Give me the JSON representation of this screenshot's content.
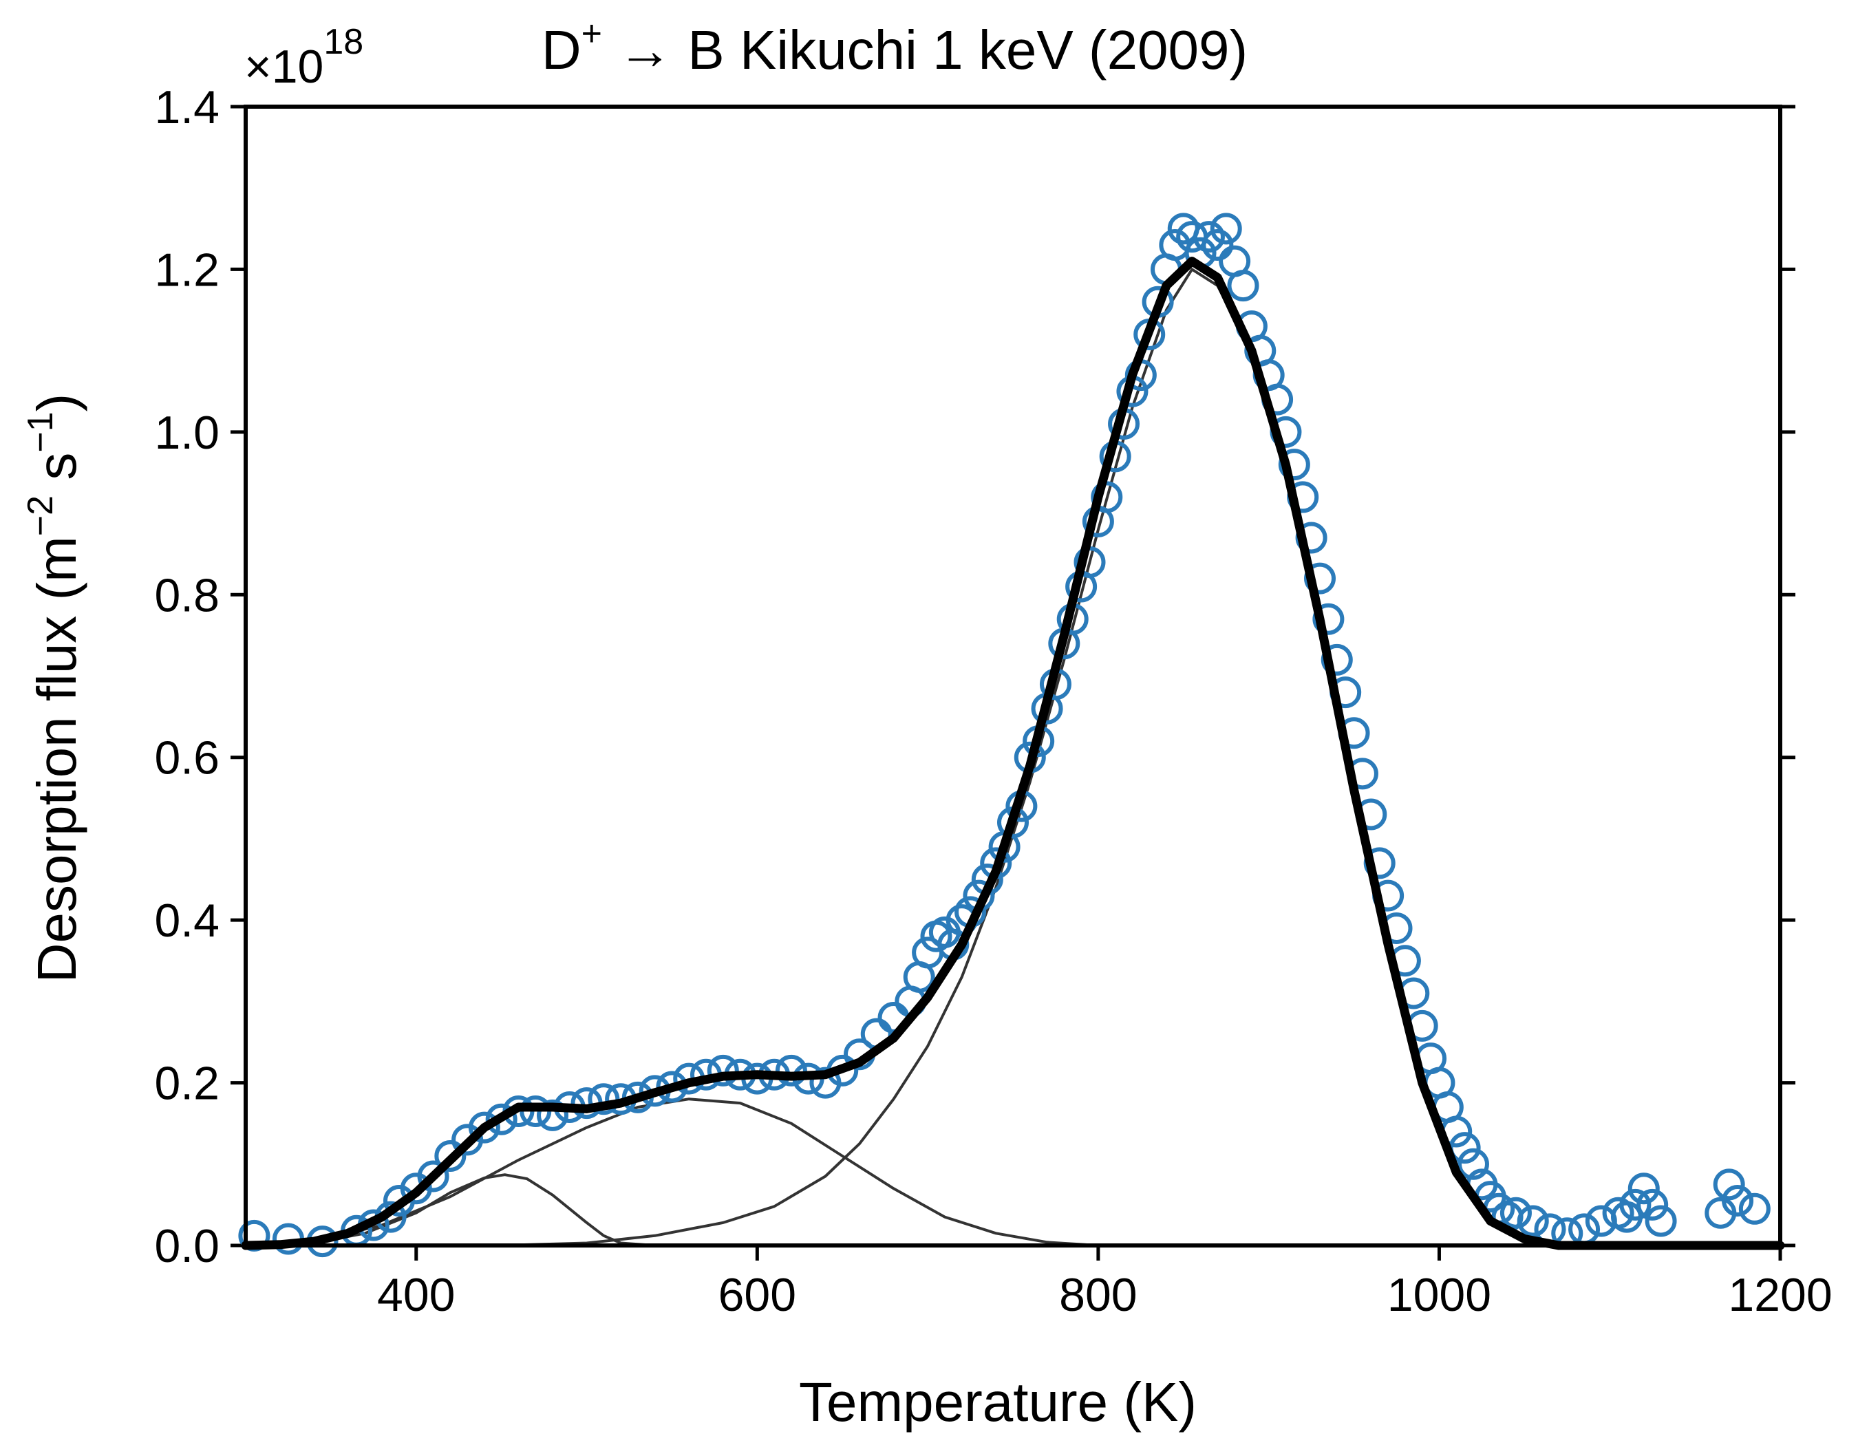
{
  "chart_data": {
    "type": "scatter",
    "title": {
      "prefix": "D",
      "sup": "+",
      "rest": " → B Kikuchi 1 keV (2009)"
    },
    "xlabel": "Temperature (K)",
    "ylabel": {
      "base": "Desorption flux (m",
      "sup1": "−2",
      "mid": " s",
      "sup2": "−1",
      "end": ")"
    },
    "y_multiplier": {
      "base": "×10",
      "exp": "18"
    },
    "xlim": [
      300,
      1200
    ],
    "ylim": [
      0,
      1.4
    ],
    "xticks": [
      400,
      600,
      800,
      1000,
      1200
    ],
    "yticks": [
      0.0,
      0.2,
      0.4,
      0.6,
      0.8,
      1.0,
      1.2,
      1.4
    ],
    "ytick_labels": [
      "0.0",
      "0.2",
      "0.4",
      "0.6",
      "0.8",
      "1.0",
      "1.2",
      "1.4"
    ],
    "grid": false,
    "colors": {
      "measured": "#2b7bba",
      "fit": "#000000",
      "components": "#333333"
    },
    "series": [
      {
        "role": "measured",
        "style": "open-circles",
        "points": [
          [
            305,
            0.012
          ],
          [
            325,
            0.008
          ],
          [
            345,
            0.005
          ],
          [
            365,
            0.018
          ],
          [
            375,
            0.025
          ],
          [
            385,
            0.035
          ],
          [
            390,
            0.055
          ],
          [
            400,
            0.07
          ],
          [
            410,
            0.085
          ],
          [
            420,
            0.11
          ],
          [
            430,
            0.13
          ],
          [
            440,
            0.145
          ],
          [
            450,
            0.155
          ],
          [
            460,
            0.165
          ],
          [
            470,
            0.165
          ],
          [
            480,
            0.16
          ],
          [
            490,
            0.17
          ],
          [
            500,
            0.175
          ],
          [
            510,
            0.18
          ],
          [
            520,
            0.18
          ],
          [
            530,
            0.182
          ],
          [
            540,
            0.19
          ],
          [
            550,
            0.195
          ],
          [
            560,
            0.205
          ],
          [
            570,
            0.21
          ],
          [
            580,
            0.215
          ],
          [
            590,
            0.21
          ],
          [
            600,
            0.205
          ],
          [
            610,
            0.21
          ],
          [
            620,
            0.215
          ],
          [
            630,
            0.205
          ],
          [
            640,
            0.2
          ],
          [
            650,
            0.215
          ],
          [
            660,
            0.235
          ],
          [
            670,
            0.26
          ],
          [
            680,
            0.28
          ],
          [
            690,
            0.3
          ],
          [
            695,
            0.33
          ],
          [
            700,
            0.36
          ],
          [
            705,
            0.38
          ],
          [
            710,
            0.385
          ],
          [
            715,
            0.37
          ],
          [
            720,
            0.4
          ],
          [
            725,
            0.41
          ],
          [
            730,
            0.43
          ],
          [
            735,
            0.45
          ],
          [
            740,
            0.47
          ],
          [
            745,
            0.49
          ],
          [
            750,
            0.52
          ],
          [
            755,
            0.54
          ],
          [
            760,
            0.6
          ],
          [
            765,
            0.62
          ],
          [
            770,
            0.66
          ],
          [
            775,
            0.69
          ],
          [
            780,
            0.74
          ],
          [
            785,
            0.77
          ],
          [
            790,
            0.81
          ],
          [
            795,
            0.84
          ],
          [
            800,
            0.89
          ],
          [
            805,
            0.92
          ],
          [
            810,
            0.97
          ],
          [
            815,
            1.01
          ],
          [
            820,
            1.05
          ],
          [
            825,
            1.07
          ],
          [
            830,
            1.12
          ],
          [
            835,
            1.16
          ],
          [
            840,
            1.2
          ],
          [
            845,
            1.23
          ],
          [
            850,
            1.25
          ],
          [
            855,
            1.24
          ],
          [
            860,
            1.22
          ],
          [
            865,
            1.24
          ],
          [
            870,
            1.23
          ],
          [
            875,
            1.25
          ],
          [
            880,
            1.21
          ],
          [
            885,
            1.18
          ],
          [
            890,
            1.13
          ],
          [
            895,
            1.1
          ],
          [
            900,
            1.07
          ],
          [
            905,
            1.04
          ],
          [
            910,
            1.0
          ],
          [
            915,
            0.96
          ],
          [
            920,
            0.92
          ],
          [
            925,
            0.87
          ],
          [
            930,
            0.82
          ],
          [
            935,
            0.77
          ],
          [
            940,
            0.72
          ],
          [
            945,
            0.68
          ],
          [
            950,
            0.63
          ],
          [
            955,
            0.58
          ],
          [
            960,
            0.53
          ],
          [
            965,
            0.47
          ],
          [
            970,
            0.43
          ],
          [
            975,
            0.39
          ],
          [
            980,
            0.35
          ],
          [
            985,
            0.31
          ],
          [
            990,
            0.27
          ],
          [
            995,
            0.23
          ],
          [
            1000,
            0.2
          ],
          [
            1005,
            0.17
          ],
          [
            1010,
            0.14
          ],
          [
            1015,
            0.12
          ],
          [
            1020,
            0.1
          ],
          [
            1025,
            0.075
          ],
          [
            1030,
            0.06
          ],
          [
            1035,
            0.045
          ],
          [
            1040,
            0.035
          ],
          [
            1045,
            0.04
          ],
          [
            1055,
            0.03
          ],
          [
            1065,
            0.02
          ],
          [
            1075,
            0.015
          ],
          [
            1085,
            0.02
          ],
          [
            1095,
            0.03
          ],
          [
            1105,
            0.04
          ],
          [
            1110,
            0.035
          ],
          [
            1115,
            0.05
          ],
          [
            1120,
            0.07
          ],
          [
            1125,
            0.05
          ],
          [
            1130,
            0.03
          ],
          [
            1165,
            0.04
          ],
          [
            1170,
            0.075
          ],
          [
            1175,
            0.055
          ],
          [
            1185,
            0.045
          ]
        ]
      },
      {
        "role": "fit",
        "style": "thick-line",
        "points": [
          [
            300,
            0.0
          ],
          [
            320,
            0.001
          ],
          [
            340,
            0.005
          ],
          [
            360,
            0.015
          ],
          [
            380,
            0.035
          ],
          [
            400,
            0.065
          ],
          [
            420,
            0.105
          ],
          [
            440,
            0.145
          ],
          [
            460,
            0.17
          ],
          [
            480,
            0.17
          ],
          [
            500,
            0.168
          ],
          [
            520,
            0.175
          ],
          [
            540,
            0.188
          ],
          [
            560,
            0.2
          ],
          [
            580,
            0.208
          ],
          [
            600,
            0.21
          ],
          [
            620,
            0.208
          ],
          [
            640,
            0.21
          ],
          [
            660,
            0.225
          ],
          [
            680,
            0.255
          ],
          [
            700,
            0.305
          ],
          [
            720,
            0.37
          ],
          [
            740,
            0.46
          ],
          [
            760,
            0.59
          ],
          [
            780,
            0.75
          ],
          [
            800,
            0.92
          ],
          [
            820,
            1.07
          ],
          [
            840,
            1.18
          ],
          [
            855,
            1.21
          ],
          [
            870,
            1.19
          ],
          [
            890,
            1.1
          ],
          [
            910,
            0.96
          ],
          [
            930,
            0.77
          ],
          [
            950,
            0.56
          ],
          [
            970,
            0.37
          ],
          [
            990,
            0.2
          ],
          [
            1010,
            0.09
          ],
          [
            1030,
            0.03
          ],
          [
            1050,
            0.008
          ],
          [
            1070,
            0.0
          ],
          [
            1200,
            0.0
          ]
        ]
      },
      {
        "role": "component",
        "style": "thin-line",
        "points": [
          [
            300,
            0.0
          ],
          [
            340,
            0.003
          ],
          [
            370,
            0.015
          ],
          [
            400,
            0.04
          ],
          [
            420,
            0.065
          ],
          [
            440,
            0.083
          ],
          [
            452,
            0.087
          ],
          [
            465,
            0.082
          ],
          [
            480,
            0.062
          ],
          [
            500,
            0.028
          ],
          [
            510,
            0.012
          ],
          [
            520,
            0.003
          ],
          [
            540,
            0.0
          ],
          [
            640,
            0.0
          ]
        ]
      },
      {
        "role": "component",
        "style": "thin-line",
        "points": [
          [
            300,
            0.0
          ],
          [
            340,
            0.005
          ],
          [
            380,
            0.025
          ],
          [
            420,
            0.06
          ],
          [
            460,
            0.105
          ],
          [
            500,
            0.145
          ],
          [
            530,
            0.17
          ],
          [
            560,
            0.18
          ],
          [
            590,
            0.175
          ],
          [
            620,
            0.15
          ],
          [
            650,
            0.11
          ],
          [
            680,
            0.07
          ],
          [
            710,
            0.035
          ],
          [
            740,
            0.015
          ],
          [
            770,
            0.004
          ],
          [
            800,
            0.0
          ]
        ]
      },
      {
        "role": "component",
        "style": "thin-line",
        "points": [
          [
            300,
            0.0
          ],
          [
            450,
            0.0
          ],
          [
            500,
            0.003
          ],
          [
            540,
            0.012
          ],
          [
            580,
            0.028
          ],
          [
            610,
            0.048
          ],
          [
            640,
            0.085
          ],
          [
            660,
            0.125
          ],
          [
            680,
            0.18
          ],
          [
            700,
            0.245
          ],
          [
            720,
            0.33
          ],
          [
            740,
            0.44
          ],
          [
            760,
            0.57
          ],
          [
            780,
            0.72
          ],
          [
            800,
            0.88
          ],
          [
            820,
            1.03
          ],
          [
            840,
            1.15
          ],
          [
            855,
            1.2
          ],
          [
            870,
            1.18
          ],
          [
            890,
            1.1
          ],
          [
            910,
            0.96
          ],
          [
            930,
            0.77
          ],
          [
            950,
            0.56
          ],
          [
            970,
            0.37
          ],
          [
            990,
            0.2
          ],
          [
            1010,
            0.09
          ],
          [
            1030,
            0.03
          ],
          [
            1050,
            0.008
          ],
          [
            1070,
            0.0
          ],
          [
            1200,
            0.0
          ]
        ]
      }
    ]
  }
}
